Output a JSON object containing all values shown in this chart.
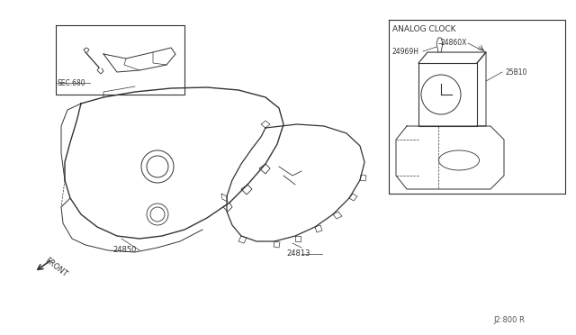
{
  "bg_color": "#ffffff",
  "line_color": "#333333",
  "diagram_ref": "J2:800 R",
  "labels": {
    "sec680": "SEC.680",
    "part24850": "24850",
    "part24813": "24813",
    "part24969H": "24969H",
    "part24860X": "24860X",
    "part25B10": "25B10",
    "analog_clock": "ANALOG CLOCK",
    "front": "FRONT"
  },
  "fig_width": 6.4,
  "fig_height": 3.72
}
